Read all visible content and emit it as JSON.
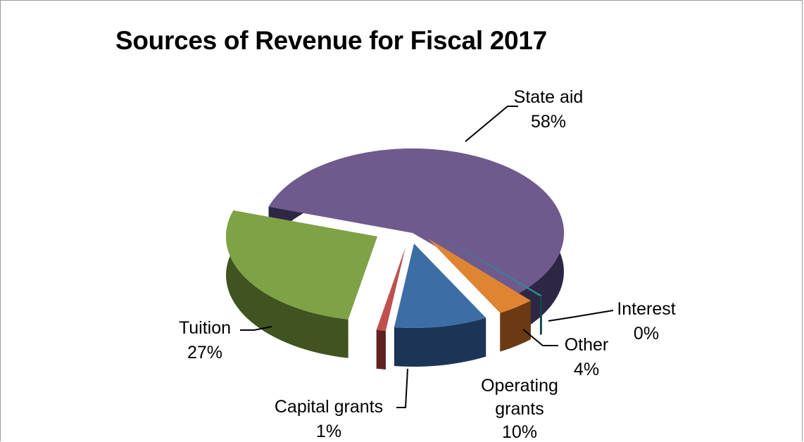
{
  "chart_data": {
    "type": "pie",
    "title": "Sources of Revenue for Fiscal 2017",
    "slices": [
      {
        "label": "State aid",
        "pct_label": "58%",
        "value": 58,
        "color": "#6f5a8e",
        "side": "#2e2645"
      },
      {
        "label": "Interest",
        "pct_label": "0%",
        "value": 0.3,
        "color": "#2a8a8f",
        "side": "#144648"
      },
      {
        "label": "Other",
        "pct_label": "4%",
        "value": 4,
        "color": "#df8532",
        "side": "#6b3a12"
      },
      {
        "label": "Operating grants",
        "label_lines": [
          "Operating",
          "grants"
        ],
        "pct_label": "10%",
        "value": 10,
        "color": "#3c6ea5",
        "side": "#1c3556"
      },
      {
        "label": "Capital grants",
        "pct_label": "1%",
        "value": 1,
        "color": "#c0504d",
        "side": "#5e2320"
      },
      {
        "label": "Tuition",
        "pct_label": "27%",
        "value": 27,
        "color": "#7fa246",
        "side": "#3f5420"
      }
    ],
    "legend": "none"
  }
}
